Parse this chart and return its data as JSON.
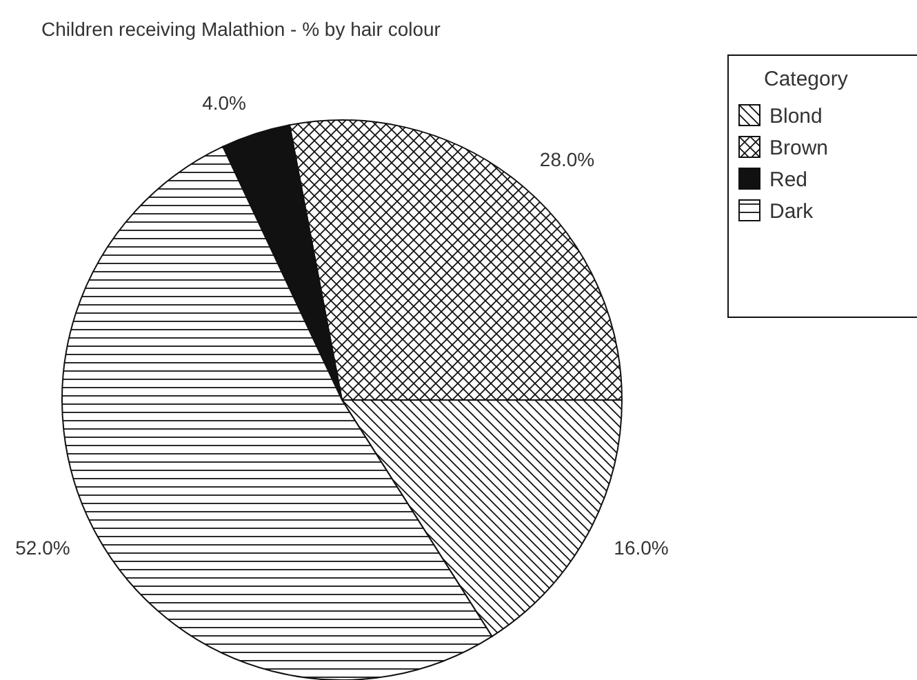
{
  "chart_data": {
    "type": "pie",
    "title": "Children receiving Malathion - % by hair colour",
    "legend_title": "Category",
    "legend": "right",
    "categories": [
      "Blond",
      "Brown",
      "Red",
      "Dark"
    ],
    "values": [
      16,
      28,
      4,
      52
    ],
    "colors": [
      "#111111",
      "#111111",
      "#111111",
      "#111111"
    ],
    "value_labels": [
      "16.0%",
      "28.0%",
      "4.0%",
      "52.0%"
    ]
  }
}
